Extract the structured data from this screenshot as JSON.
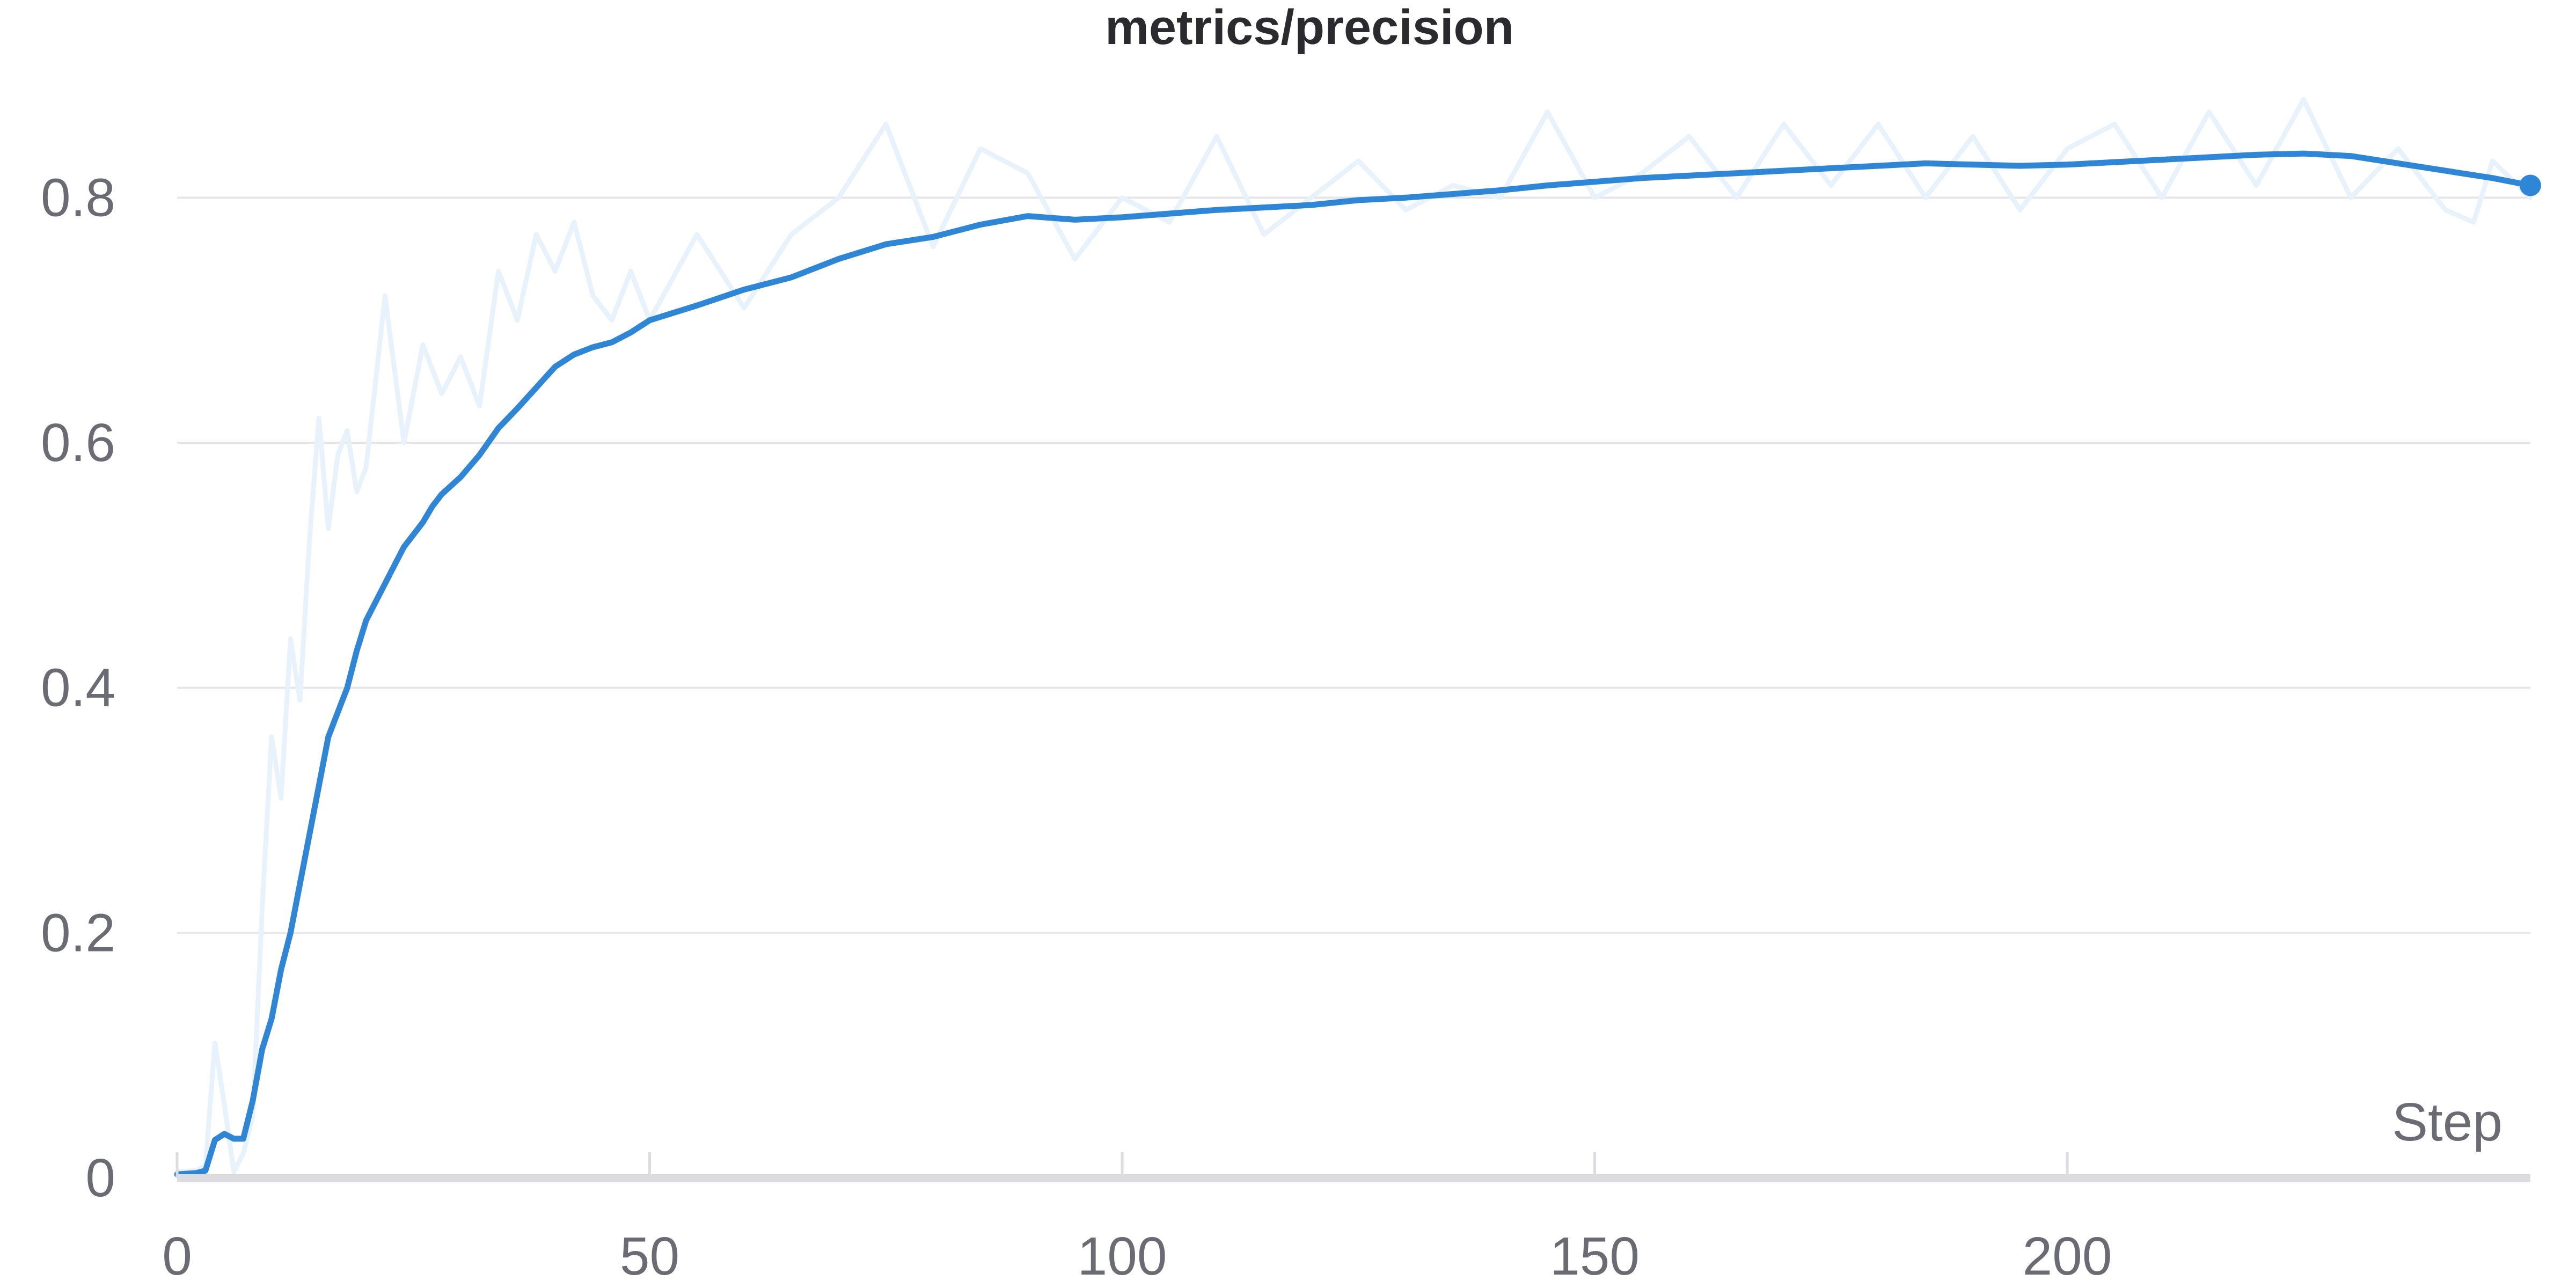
{
  "chart_data": {
    "type": "line",
    "title": "metrics/precision",
    "xlabel": "Step",
    "ylabel": "",
    "xlim": [
      0,
      249
    ],
    "ylim": [
      0,
      0.9
    ],
    "xticks": [
      0,
      50,
      100,
      150,
      200
    ],
    "yticks": [
      0,
      0.2,
      0.4,
      0.6,
      0.8
    ],
    "ytick_labels": [
      "0",
      "0.2",
      "0.4",
      "0.6",
      "0.8"
    ],
    "grid": true,
    "legend": "none",
    "colors": {
      "smoothed": "#2f86d6",
      "raw": "#e8f2fb",
      "grid": "#e6e6ea",
      "axis": "#dcdce0",
      "text": "#6b6b73"
    },
    "series": [
      {
        "role": "raw",
        "x": [
          0,
          2,
          3,
          4,
          5,
          6,
          7,
          8,
          9,
          10,
          11,
          12,
          13,
          14,
          15,
          16,
          17,
          18,
          19,
          20,
          22,
          24,
          26,
          28,
          30,
          32,
          34,
          36,
          38,
          40,
          42,
          44,
          46,
          48,
          50,
          55,
          60,
          65,
          70,
          75,
          80,
          85,
          90,
          95,
          100,
          105,
          110,
          115,
          120,
          125,
          130,
          135,
          140,
          145,
          150,
          155,
          160,
          165,
          170,
          175,
          180,
          185,
          190,
          195,
          200,
          205,
          210,
          215,
          220,
          225,
          230,
          235,
          240,
          243,
          245,
          249
        ],
        "values": [
          0.005,
          0.006,
          0.01,
          0.11,
          0.06,
          0.005,
          0.02,
          0.05,
          0.22,
          0.36,
          0.31,
          0.44,
          0.39,
          0.52,
          0.62,
          0.53,
          0.59,
          0.61,
          0.56,
          0.58,
          0.72,
          0.6,
          0.68,
          0.64,
          0.67,
          0.63,
          0.74,
          0.7,
          0.77,
          0.74,
          0.78,
          0.72,
          0.7,
          0.74,
          0.7,
          0.77,
          0.71,
          0.77,
          0.8,
          0.86,
          0.76,
          0.84,
          0.82,
          0.75,
          0.8,
          0.78,
          0.85,
          0.77,
          0.8,
          0.83,
          0.79,
          0.81,
          0.8,
          0.87,
          0.8,
          0.82,
          0.85,
          0.8,
          0.86,
          0.81,
          0.86,
          0.8,
          0.85,
          0.79,
          0.84,
          0.86,
          0.8,
          0.87,
          0.81,
          0.88,
          0.8,
          0.84,
          0.79,
          0.78,
          0.83,
          0.8
        ]
      },
      {
        "role": "smoothed",
        "x": [
          0,
          2,
          3,
          4,
          5,
          6,
          7,
          8,
          9,
          10,
          11,
          12,
          13,
          14,
          15,
          16,
          17,
          18,
          19,
          20,
          21,
          22,
          23,
          24,
          25,
          26,
          27,
          28,
          30,
          32,
          34,
          36,
          38,
          40,
          42,
          44,
          46,
          48,
          50,
          55,
          60,
          65,
          70,
          75,
          80,
          85,
          90,
          95,
          100,
          105,
          110,
          115,
          120,
          125,
          130,
          135,
          140,
          145,
          150,
          155,
          160,
          165,
          170,
          175,
          180,
          185,
          190,
          195,
          200,
          205,
          210,
          215,
          220,
          225,
          230,
          235,
          240,
          245,
          249
        ],
        "values": [
          0.003,
          0.004,
          0.006,
          0.031,
          0.036,
          0.032,
          0.032,
          0.063,
          0.105,
          0.13,
          0.17,
          0.2,
          0.24,
          0.28,
          0.32,
          0.36,
          0.38,
          0.4,
          0.43,
          0.455,
          0.47,
          0.485,
          0.5,
          0.515,
          0.525,
          0.535,
          0.548,
          0.558,
          0.572,
          0.59,
          0.612,
          0.628,
          0.645,
          0.662,
          0.672,
          0.678,
          0.682,
          0.69,
          0.7,
          0.712,
          0.725,
          0.735,
          0.75,
          0.762,
          0.768,
          0.778,
          0.785,
          0.782,
          0.784,
          0.787,
          0.79,
          0.792,
          0.794,
          0.798,
          0.8,
          0.803,
          0.806,
          0.81,
          0.813,
          0.816,
          0.818,
          0.82,
          0.822,
          0.824,
          0.826,
          0.828,
          0.827,
          0.826,
          0.827,
          0.829,
          0.831,
          0.833,
          0.835,
          0.836,
          0.834,
          0.828,
          0.822,
          0.816,
          0.81
        ]
      }
    ]
  }
}
